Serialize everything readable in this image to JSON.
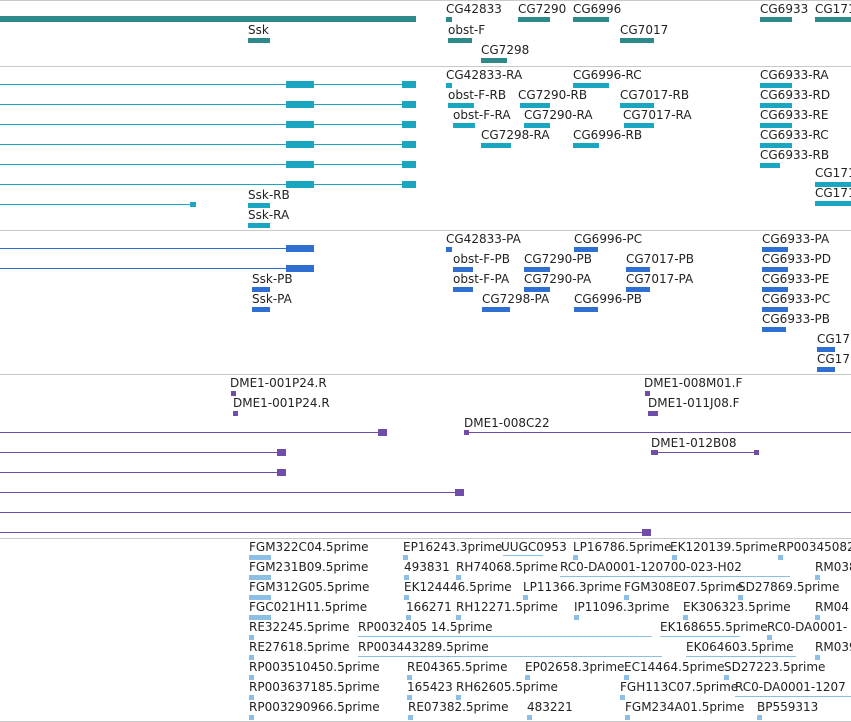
{
  "palette": {
    "gene": "#2e8a8a",
    "transcript": "#1aa6c0",
    "protein": "#2f6fd1",
    "clone": "#6f4da8",
    "est": "#8cbfe6",
    "divider": "#c9c9c9"
  },
  "tracks": {
    "genes": {
      "labels": [
        "CG42833",
        "CG7290",
        "CG6996",
        "CG6933",
        "CG171",
        "Ssk",
        "obst-F",
        "CG7017",
        "CG7298"
      ]
    },
    "transcripts": {
      "labels": [
        "CG42833-RA",
        "CG6996-RC",
        "CG6933-RA",
        "obst-F-RB",
        "CG7290-RB",
        "CG7017-RB",
        "CG6933-RD",
        "obst-F-RA",
        "CG7290-RA",
        "CG7017-RA",
        "CG6933-RE",
        "CG7298-RA",
        "CG6996-RB",
        "CG6933-RC",
        "CG6933-RB",
        "CG171",
        "Ssk-RB",
        "CG171",
        "Ssk-RA"
      ]
    },
    "proteins": {
      "labels": [
        "CG42833-PA",
        "CG6996-PC",
        "CG6933-PA",
        "obst-F-PB",
        "CG7290-PB",
        "CG7017-PB",
        "CG6933-PD",
        "Ssk-PB",
        "obst-F-PA",
        "CG7290-PA",
        "CG7017-PA",
        "CG6933-PE",
        "Ssk-PA",
        "CG7298-PA",
        "CG6996-PB",
        "CG6933-PC",
        "CG6933-PB",
        "CG17",
        "CG17"
      ]
    },
    "clones": {
      "labels": [
        "DME1-001P24.R",
        "DME1-008M01.F",
        "DME1-001P24.R",
        "DME1-011J08.F",
        "DME1-008C22",
        "DME1-012B08"
      ]
    },
    "ests": {
      "labels": [
        "FGM322C04.5prime",
        "EP16243.3prime",
        "UUGC0953",
        "LP16786.5prime",
        "EK120139.5prime",
        "RP00345082",
        "FGM231B09.5prime",
        "493831",
        "RH74068.5prime",
        "RC0-DA0001-120700-023-H02",
        "RM038",
        "FGM312G05.5prime",
        "EK124446.5prime",
        "LP11366.3prime",
        "FGM308E07.5prime",
        "SD27869.5prime",
        "FGC021H11.5prime",
        "166271",
        "RH12271.5prime",
        "IP11096.3prime",
        "EK306323.5prime",
        "RM04",
        "RE32245.5prime",
        "RP0032405 14.5prime",
        "EK168655.5prime",
        "RC0-DA0001-",
        "RE27618.5prime",
        "RP003443289.5prime",
        "EK064603.5prime",
        "RM039",
        "RP003510450.5prime",
        "RE04365.5prime",
        "EP02658.3prime",
        "EC14464.5prime",
        "SD27223.5prime",
        "RP003637185.5prime",
        "165423",
        "RH62605.5prime",
        "FGH113C07.5prime",
        "RC0-DA0001-1207",
        "RP003290966.5prime",
        "RE07382.5prime",
        "483221",
        "FGM234A01.5prime",
        "BP559313"
      ]
    }
  }
}
